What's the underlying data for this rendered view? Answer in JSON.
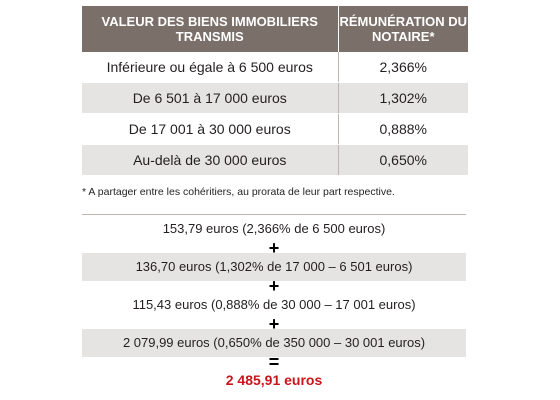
{
  "table": {
    "headers": [
      "VALEUR DES BIENS IMMOBILIERS TRANSMIS",
      "RÉMUNÉRATION DU NOTAIRE*"
    ],
    "rows": [
      {
        "range": "Inférieure ou égale à 6 500 euros",
        "rate": "2,366%"
      },
      {
        "range": "De 6 501 à 17 000 euros",
        "rate": "1,302%"
      },
      {
        "range": "De 17 001 à 30 000 euros",
        "rate": "0,888%"
      },
      {
        "range": "Au-delà de 30 000 euros",
        "rate": "0,650%"
      }
    ]
  },
  "footnote": "* A partager entre les cohéritiers, au prorata de leur part respective.",
  "calculation": {
    "lines": [
      "153,79 euros (2,366% de 6 500 euros)",
      "136,70 euros (1,302% de 17 000 – 6 501 euros)",
      "115,43 euros (0,888% de 30 000 – 17 001 euros)",
      "2 079,99 euros (0,650% de 350 000 – 30 001 euros)"
    ],
    "plus_sign": "+",
    "equals_sign": "=",
    "total": "2 485,91 euros"
  },
  "colors": {
    "header_bg": "#7b6f69",
    "alt_row_bg": "#e6e4e3",
    "total_text": "#c8151b"
  }
}
